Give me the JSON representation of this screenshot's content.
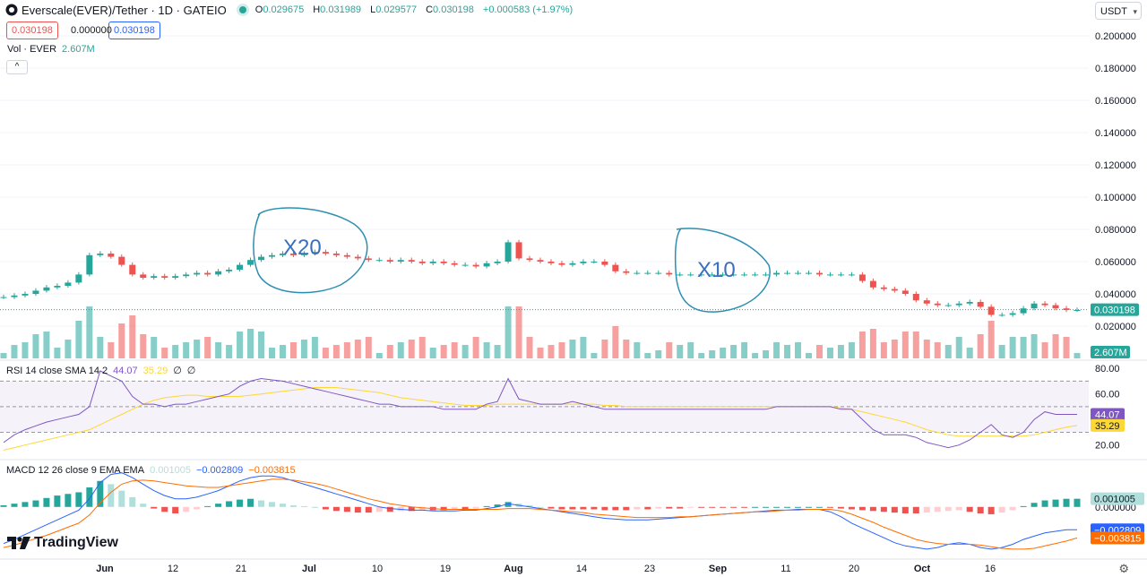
{
  "header": {
    "symbol": "Everscale(EVER)/Tether · 1D · GATEIO",
    "open_label": "O",
    "open": "0.029675",
    "high_label": "H",
    "high": "0.031989",
    "low_label": "L",
    "low": "0.029577",
    "close_label": "C",
    "close": "0.030198",
    "change": "+0.000583 (+1.97%)"
  },
  "price_boxes": {
    "bid": "0.030198",
    "spread": "0.000000",
    "ask": "0.030198"
  },
  "volume_legend": {
    "label": "Vol · EVER",
    "value": "2.607M"
  },
  "currency": "USDT",
  "rsi_legend": {
    "label": "RSI 14 close SMA 14 2",
    "rsi": "44.07",
    "sma": "35.29",
    "extra1": "∅",
    "extra2": "∅"
  },
  "macd_legend": {
    "label": "MACD 12 26 close 9 EMA EMA",
    "hist": "0.001005",
    "macd": "−0.002809",
    "signal": "−0.003815"
  },
  "brand": "TradingView",
  "colors": {
    "up": "#26a69a",
    "down": "#ef5350",
    "rsi": "#7e57c2",
    "rsi_sma": "#fdd835",
    "macd": "#2962ff",
    "signal": "#ff6d00",
    "annotation": "#2d8fb0"
  },
  "annotations": [
    {
      "text": "X20"
    },
    {
      "text": "X10"
    }
  ],
  "chart_data": [
    {
      "type": "candlestick",
      "title": "Everscale(EVER)/Tether · 1D · GATEIO",
      "ylim": [
        0,
        0.21
      ],
      "y_ticks": [
        "0.200000",
        "0.180000",
        "0.160000",
        "0.140000",
        "0.120000",
        "0.100000",
        "0.080000",
        "0.060000",
        "0.040000",
        "0.020000"
      ],
      "x_ticks": [
        "Jun",
        "12",
        "21",
        "Jul",
        "10",
        "19",
        "Aug",
        "14",
        "23",
        "Sep",
        "11",
        "20",
        "Oct",
        "16"
      ],
      "last_price_label": "0.030198",
      "last_volume_label": "2.607M",
      "close_series": [
        0.038,
        0.039,
        0.04,
        0.042,
        0.044,
        0.045,
        0.047,
        0.052,
        0.064,
        0.065,
        0.063,
        0.058,
        0.052,
        0.05,
        0.051,
        0.05,
        0.051,
        0.052,
        0.053,
        0.052,
        0.054,
        0.055,
        0.058,
        0.061,
        0.063,
        0.064,
        0.065,
        0.064,
        0.065,
        0.066,
        0.065,
        0.064,
        0.063,
        0.062,
        0.061,
        0.061,
        0.06,
        0.061,
        0.06,
        0.059,
        0.06,
        0.059,
        0.058,
        0.058,
        0.057,
        0.059,
        0.06,
        0.072,
        0.062,
        0.061,
        0.06,
        0.059,
        0.058,
        0.059,
        0.06,
        0.06,
        0.058,
        0.054,
        0.053,
        0.053,
        0.053,
        0.053,
        0.052,
        0.052,
        0.052,
        0.052,
        0.052,
        0.052,
        0.052,
        0.052,
        0.052,
        0.052,
        0.053,
        0.053,
        0.053,
        0.053,
        0.052,
        0.052,
        0.052,
        0.052,
        0.048,
        0.044,
        0.043,
        0.042,
        0.04,
        0.036,
        0.034,
        0.033,
        0.033,
        0.034,
        0.035,
        0.032,
        0.027,
        0.027,
        0.028,
        0.031,
        0.034,
        0.033,
        0.031,
        0.03,
        0.03
      ]
    },
    {
      "type": "line",
      "title": "RSI 14 close SMA 14 2",
      "ylim": [
        10,
        85
      ],
      "y_ticks": [
        "80.00",
        "60.00",
        "20.00"
      ],
      "levels": [
        70,
        50,
        30
      ],
      "series": [
        {
          "name": "RSI",
          "last_label": "44.07",
          "values": [
            22,
            28,
            32,
            35,
            38,
            40,
            42,
            44,
            50,
            78,
            74,
            70,
            58,
            52,
            52,
            50,
            52,
            52,
            54,
            56,
            58,
            60,
            66,
            70,
            72,
            71,
            70,
            68,
            66,
            64,
            62,
            60,
            58,
            56,
            54,
            52,
            52,
            50,
            50,
            50,
            50,
            48,
            48,
            48,
            48,
            52,
            54,
            72,
            56,
            54,
            52,
            52,
            52,
            54,
            52,
            50,
            48,
            48,
            48,
            48,
            48,
            48,
            48,
            48,
            48,
            48,
            48,
            48,
            48,
            48,
            48,
            48,
            50,
            50,
            50,
            50,
            50,
            50,
            48,
            48,
            40,
            32,
            28,
            28,
            28,
            26,
            22,
            20,
            18,
            20,
            24,
            30,
            36,
            28,
            26,
            30,
            40,
            46,
            44,
            44,
            44
          ]
        },
        {
          "name": "SMA",
          "last_label": "35.29",
          "values": [
            16,
            18,
            20,
            22,
            24,
            26,
            28,
            30,
            32,
            36,
            40,
            44,
            48,
            52,
            55,
            57,
            58,
            59,
            59,
            58,
            58,
            58,
            58,
            59,
            60,
            61,
            62,
            63,
            64,
            65,
            65,
            65,
            64,
            63,
            62,
            61,
            59,
            57,
            56,
            55,
            54,
            53,
            52,
            51,
            51,
            51,
            52,
            52,
            52,
            52,
            52,
            52,
            52,
            52,
            52,
            52,
            51,
            51,
            50,
            50,
            50,
            50,
            50,
            50,
            50,
            50,
            50,
            50,
            50,
            50,
            50,
            50,
            50,
            50,
            50,
            50,
            50,
            50,
            49,
            48,
            46,
            44,
            42,
            40,
            38,
            35,
            32,
            30,
            28,
            27,
            27,
            27,
            27,
            27,
            27,
            27,
            28,
            30,
            32,
            34,
            35.29
          ]
        }
      ]
    },
    {
      "type": "line",
      "title": "MACD 12 26 close 9 EMA EMA",
      "ylim": [
        -0.0062,
        0.0056
      ],
      "y_ticks": [
        "0.000000"
      ],
      "series": [
        {
          "name": "Histogram",
          "last_label": "0.001005",
          "values": [
            0.0002,
            0.0004,
            0.0006,
            0.0008,
            0.0011,
            0.0014,
            0.0016,
            0.0018,
            0.0024,
            0.0032,
            0.0028,
            0.002,
            0.0012,
            0.0004,
            -0.0002,
            -0.0006,
            -0.0008,
            -0.0006,
            -0.0003,
            0.0001,
            0.0004,
            0.0007,
            0.0009,
            0.001,
            0.0008,
            0.0006,
            0.0004,
            0.0002,
            0.0001,
            0.0,
            -0.0003,
            -0.0005,
            -0.0006,
            -0.0007,
            -0.0007,
            -0.0006,
            -0.0006,
            -0.0005,
            -0.0005,
            -0.0004,
            -0.0004,
            -0.0004,
            -0.0003,
            -0.0003,
            -0.0002,
            0.0001,
            0.0003,
            0.0006,
            0.0004,
            0.0002,
            0.0,
            -0.0002,
            -0.0003,
            -0.0003,
            -0.0003,
            -0.0003,
            -0.0004,
            -0.0004,
            -0.0004,
            -0.0003,
            -0.0003,
            -0.0002,
            -0.0002,
            -0.0002,
            -0.0001,
            -0.0001,
            -0.0001,
            -0.0001,
            -0.0001,
            -0.0001,
            0.0,
            0.0,
            0.0,
            0.0,
            0.0,
            0.0,
            0.0,
            -0.0001,
            -0.0002,
            -0.0003,
            -0.0004,
            -0.0005,
            -0.0006,
            -0.0007,
            -0.0008,
            -0.0008,
            -0.0007,
            -0.0006,
            -0.0005,
            -0.0004,
            -0.0006,
            -0.0008,
            -0.0009,
            -0.0007,
            -0.0004,
            0.0001,
            0.0005,
            0.0008,
            0.0009,
            0.001,
            0.001005
          ]
        },
        {
          "name": "MACD",
          "last_label": "−0.002809",
          "values": [
            -0.0045,
            -0.004,
            -0.0034,
            -0.0028,
            -0.0022,
            -0.0016,
            -0.001,
            -0.0004,
            0.001,
            0.003,
            0.004,
            0.0042,
            0.0036,
            0.0028,
            0.002,
            0.0014,
            0.001,
            0.001,
            0.0012,
            0.0016,
            0.002,
            0.0026,
            0.0032,
            0.0036,
            0.0038,
            0.0038,
            0.0036,
            0.0032,
            0.0028,
            0.0024,
            0.002,
            0.0016,
            0.0012,
            0.0008,
            0.0004,
            0.0,
            -0.0002,
            -0.0003,
            -0.0004,
            -0.0004,
            -0.0005,
            -0.0005,
            -0.0005,
            -0.0004,
            -0.0004,
            -0.0002,
            0.0,
            0.0004,
            0.0002,
            0.0,
            -0.0002,
            -0.0004,
            -0.0006,
            -0.0008,
            -0.001,
            -0.0012,
            -0.0014,
            -0.0015,
            -0.0016,
            -0.0016,
            -0.0016,
            -0.0015,
            -0.0014,
            -0.0013,
            -0.0012,
            -0.0011,
            -0.001,
            -0.0009,
            -0.0008,
            -0.0007,
            -0.0006,
            -0.0005,
            -0.0004,
            -0.0004,
            -0.0003,
            -0.0003,
            -0.0003,
            -0.0006,
            -0.0012,
            -0.002,
            -0.0026,
            -0.0032,
            -0.0038,
            -0.0044,
            -0.0048,
            -0.005,
            -0.0052,
            -0.005,
            -0.0046,
            -0.0044,
            -0.0046,
            -0.005,
            -0.0052,
            -0.005,
            -0.0046,
            -0.004,
            -0.0036,
            -0.0032,
            -0.003,
            -0.0028,
            -0.002809
          ]
        },
        {
          "name": "Signal",
          "last_label": "−0.003815",
          "values": [
            -0.005,
            -0.0047,
            -0.0043,
            -0.0039,
            -0.0035,
            -0.003,
            -0.0025,
            -0.002,
            -0.001,
            0.0005,
            0.0018,
            0.0028,
            0.0032,
            0.0033,
            0.0032,
            0.003,
            0.0028,
            0.0026,
            0.0025,
            0.0024,
            0.0024,
            0.0026,
            0.0028,
            0.003,
            0.0032,
            0.0034,
            0.0034,
            0.0033,
            0.0031,
            0.0029,
            0.0026,
            0.0022,
            0.0018,
            0.0014,
            0.001,
            0.0007,
            0.0004,
            0.0002,
            0.0,
            -0.0001,
            -0.0002,
            -0.0003,
            -0.0003,
            -0.0003,
            -0.0003,
            -0.0003,
            -0.0003,
            -0.0002,
            -0.0002,
            -0.0002,
            -0.0003,
            -0.0004,
            -0.0005,
            -0.0006,
            -0.0007,
            -0.0009,
            -0.001,
            -0.0011,
            -0.0012,
            -0.0013,
            -0.0013,
            -0.0013,
            -0.0013,
            -0.0012,
            -0.0012,
            -0.0011,
            -0.001,
            -0.0009,
            -0.0008,
            -0.0007,
            -0.0006,
            -0.0006,
            -0.0005,
            -0.0004,
            -0.0004,
            -0.0003,
            -0.0003,
            -0.0003,
            -0.0005,
            -0.0009,
            -0.0014,
            -0.0019,
            -0.0025,
            -0.003,
            -0.0035,
            -0.004,
            -0.0043,
            -0.0045,
            -0.0046,
            -0.0046,
            -0.0046,
            -0.0047,
            -0.0049,
            -0.0051,
            -0.0052,
            -0.0052,
            -0.0051,
            -0.0048,
            -0.0045,
            -0.0042,
            -0.003815
          ]
        }
      ]
    }
  ]
}
